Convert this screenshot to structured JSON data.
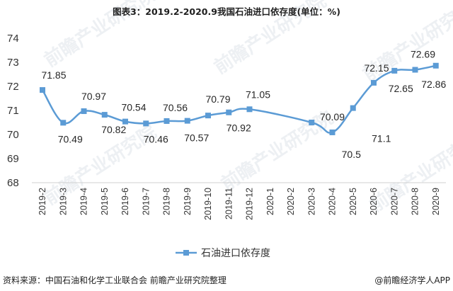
{
  "chart_data": {
    "type": "line",
    "title": "图表3：2019.2-2020.9我国石油进口依存度(单位：%)",
    "categories": [
      "2019-2",
      "2019-3",
      "2019-4",
      "2019-5",
      "2019-6",
      "2019-7",
      "2019-8",
      "2019-9",
      "2019-10",
      "2019-11",
      "2019-12",
      "2020-1",
      "2020-2",
      "2020-3",
      "2020-4",
      "2020-5",
      "2020-6",
      "2020-7",
      "2020-8",
      "2020-9"
    ],
    "series": [
      {
        "name": "石油进口依存度",
        "color": "#5b9bd5",
        "values": [
          71.85,
          70.49,
          70.97,
          70.82,
          70.54,
          70.46,
          70.56,
          70.57,
          70.79,
          70.92,
          71.05,
          null,
          null,
          70.5,
          70.09,
          71.1,
          72.15,
          72.65,
          72.69,
          72.86
        ],
        "labels": [
          "71.85",
          "70.49",
          "70.97",
          "70.82",
          "70.54",
          "70.46",
          "70.56",
          "70.57",
          "70.79",
          "70.92",
          "71.05",
          null,
          null,
          "70.5",
          "70.09",
          "71.1",
          "72.15",
          "72.65",
          "72.69",
          "72.86"
        ]
      }
    ],
    "ylim": [
      68,
      74
    ],
    "yticks": [
      "68",
      "69",
      "70",
      "71",
      "72",
      "73",
      "74"
    ],
    "grid": false,
    "legend": "bottom"
  },
  "footer": {
    "source": "资料来源：中国石油和化学工业联合会 前瞻产业研究院整理",
    "brand": "@前瞻经济学人APP"
  },
  "watermark": "前瞻产业研究院"
}
